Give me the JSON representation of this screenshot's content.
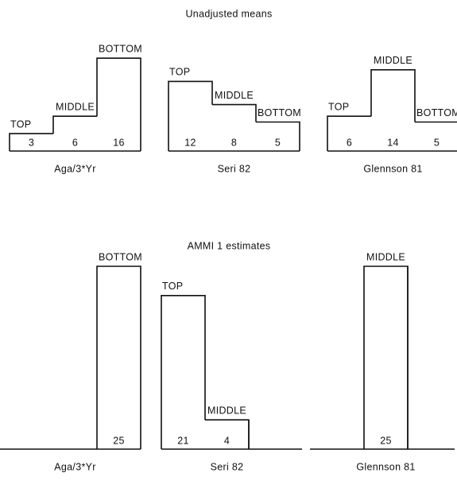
{
  "chart_data": [
    {
      "type": "step-bar",
      "title": "Unadjusted means",
      "groups": [
        {
          "name": "Aga/3*Yr",
          "categories": [
            "TOP",
            "MIDDLE",
            "BOTTOM"
          ],
          "values": [
            3,
            6,
            16
          ]
        },
        {
          "name": "Seri 82",
          "categories": [
            "TOP",
            "MIDDLE",
            "BOTTOM"
          ],
          "values": [
            12,
            8,
            5
          ]
        },
        {
          "name": "Glennson 81",
          "categories": [
            "TOP",
            "MIDDLE",
            "BOTTOM"
          ],
          "values": [
            6,
            14,
            5
          ]
        }
      ]
    },
    {
      "type": "step-bar",
      "title": "AMMI 1 estimates",
      "groups": [
        {
          "name": "Aga/3*Yr",
          "categories": [
            null,
            null,
            "BOTTOM"
          ],
          "values": [
            null,
            null,
            25
          ]
        },
        {
          "name": "Seri 82",
          "categories": [
            "TOP",
            "MIDDLE",
            null
          ],
          "values": [
            21,
            4,
            null
          ]
        },
        {
          "name": "Glennson 81",
          "categories": [
            null,
            "MIDDLE",
            null
          ],
          "values": [
            null,
            25,
            null
          ]
        }
      ]
    }
  ]
}
